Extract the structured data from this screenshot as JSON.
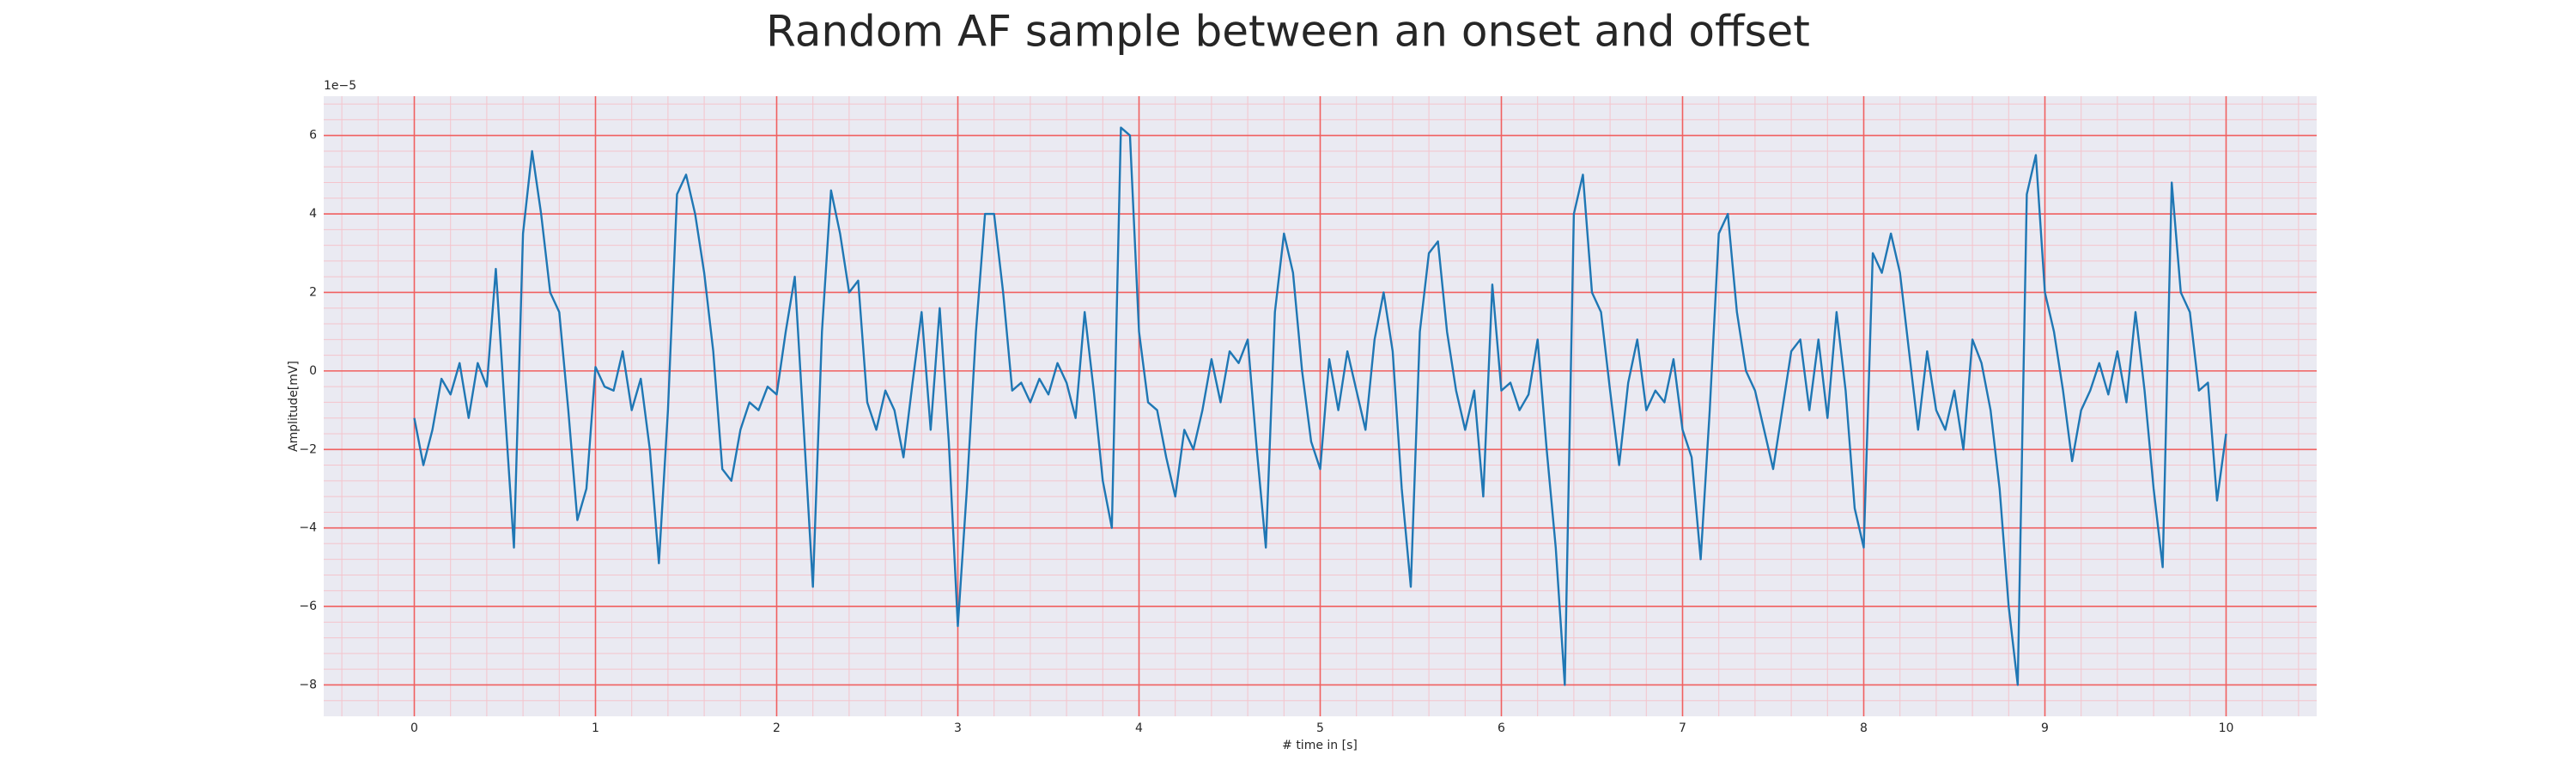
{
  "chart_data": {
    "type": "line",
    "title": "Random AF sample between an onset and offset",
    "xlabel": "# time in [s]",
    "ylabel": "Amplitude[mV]",
    "y_offset_label": "1e−5",
    "color": "#1f77b4",
    "background": "#eaeaf2",
    "grid": true,
    "grid_color": "#f06060",
    "minor_grid": true,
    "minor_grid_color": "#f4c4cc",
    "xlim": [
      -0.5,
      10.5
    ],
    "ylim": [
      -8.8,
      7.0
    ],
    "xticks": [
      0,
      1,
      2,
      3,
      4,
      5,
      6,
      7,
      8,
      9,
      10
    ],
    "yticks": [
      {
        "value": -8,
        "label": "−8"
      },
      {
        "value": -6,
        "label": "−6"
      },
      {
        "value": -4,
        "label": "−4"
      },
      {
        "value": -2,
        "label": "−2"
      },
      0,
      2,
      4,
      6
    ],
    "xminorticks": [
      -0.4,
      -0.2,
      0,
      0.2,
      0.4,
      0.6,
      0.8,
      1,
      1.2,
      1.4,
      1.6,
      1.8,
      2,
      2.2,
      2.4,
      2.6,
      2.8,
      3,
      3.2,
      3.4,
      3.6,
      3.8,
      4,
      4.2,
      4.4,
      4.6,
      4.8,
      5,
      5.2,
      5.4,
      5.6,
      5.8,
      6,
      6.2,
      6.4,
      6.6,
      6.8,
      7,
      7.2,
      7.4,
      7.6,
      7.8,
      8,
      8.2,
      8.4,
      8.6,
      8.8,
      9,
      9.2,
      9.4,
      9.6,
      9.8,
      10,
      10.2,
      10.4
    ],
    "yminorticks": [
      -8.4,
      -8,
      -7.6,
      -7.2,
      -6.8,
      -6.4,
      -6,
      -5.6,
      -5.2,
      -4.8,
      -4.4,
      -4,
      -3.6,
      -3.2,
      -2.8,
      -2.4,
      -2,
      -1.6,
      -1.2,
      -0.8,
      -0.4,
      0,
      0.4,
      0.8,
      1.2,
      1.6,
      2,
      2.4,
      2.8,
      3.2,
      3.6,
      4,
      4.4,
      4.8,
      5.2,
      5.6,
      6,
      6.4,
      6.8
    ],
    "x": [
      0,
      0.05,
      0.1,
      0.15,
      0.2,
      0.25,
      0.3,
      0.35,
      0.4,
      0.45,
      0.5,
      0.55,
      0.6,
      0.65,
      0.7,
      0.75,
      0.8,
      0.85,
      0.9,
      0.95,
      1,
      1.05,
      1.1,
      1.15,
      1.2,
      1.25,
      1.3,
      1.35,
      1.4,
      1.45,
      1.5,
      1.55,
      1.6,
      1.65,
      1.7,
      1.75,
      1.8,
      1.85,
      1.9,
      1.95,
      2,
      2.05,
      2.1,
      2.15,
      2.2,
      2.25,
      2.3,
      2.35,
      2.4,
      2.45,
      2.5,
      2.55,
      2.6,
      2.65,
      2.7,
      2.75,
      2.8,
      2.85,
      2.9,
      2.95,
      3,
      3.05,
      3.1,
      3.15,
      3.2,
      3.25,
      3.3,
      3.35,
      3.4,
      3.45,
      3.5,
      3.55,
      3.6,
      3.65,
      3.7,
      3.75,
      3.8,
      3.85,
      3.9,
      3.95,
      4,
      4.05,
      4.1,
      4.15,
      4.2,
      4.25,
      4.3,
      4.35,
      4.4,
      4.45,
      4.5,
      4.55,
      4.6,
      4.65,
      4.7,
      4.75,
      4.8,
      4.85,
      4.9,
      4.95,
      5,
      5.05,
      5.1,
      5.15,
      5.2,
      5.25,
      5.3,
      5.35,
      5.4,
      5.45,
      5.5,
      5.55,
      5.6,
      5.65,
      5.7,
      5.75,
      5.8,
      5.85,
      5.9,
      5.95,
      6,
      6.05,
      6.1,
      6.15,
      6.2,
      6.25,
      6.3,
      6.35,
      6.4,
      6.45,
      6.5,
      6.55,
      6.6,
      6.65,
      6.7,
      6.75,
      6.8,
      6.85,
      6.9,
      6.95,
      7,
      7.05,
      7.1,
      7.15,
      7.2,
      7.25,
      7.3,
      7.35,
      7.4,
      7.45,
      7.5,
      7.55,
      7.6,
      7.65,
      7.7,
      7.75,
      7.8,
      7.85,
      7.9,
      7.95,
      8,
      8.05,
      8.1,
      8.15,
      8.2,
      8.25,
      8.3,
      8.35,
      8.4,
      8.45,
      8.5,
      8.55,
      8.6,
      8.65,
      8.7,
      8.75,
      8.8,
      8.85,
      8.9,
      8.95,
      9,
      9.05,
      9.1,
      9.15,
      9.2,
      9.25,
      9.3,
      9.35,
      9.4,
      9.45,
      9.5,
      9.55,
      9.6,
      9.65,
      9.7,
      9.75,
      9.8,
      9.85,
      9.9,
      9.95,
      10
    ],
    "values": [
      -1.2,
      -2.4,
      -1.5,
      -0.2,
      -0.6,
      0.2,
      -1.2,
      0.2,
      -0.4,
      2.6,
      -1.0,
      -4.5,
      3.5,
      5.6,
      4.0,
      2.0,
      1.5,
      -1.0,
      -3.8,
      -3.0,
      0.1,
      -0.4,
      -0.5,
      0.5,
      -1.0,
      -0.2,
      -2.0,
      -4.9,
      -1.0,
      4.5,
      5.0,
      4.0,
      2.5,
      0.5,
      -2.5,
      -2.8,
      -1.5,
      -0.8,
      -1.0,
      -0.4,
      -0.6,
      1.0,
      2.4,
      -1.5,
      -5.5,
      1.0,
      4.6,
      3.5,
      2.0,
      2.3,
      -0.8,
      -1.5,
      -0.5,
      -1.0,
      -2.2,
      -0.3,
      1.5,
      -1.5,
      1.6,
      -1.8,
      -6.5,
      -3.0,
      1.0,
      4.0,
      4.0,
      2.0,
      -0.5,
      -0.3,
      -0.8,
      -0.2,
      -0.6,
      0.2,
      -0.3,
      -1.2,
      1.5,
      -0.5,
      -2.8,
      -4.0,
      6.2,
      6.0,
      1.0,
      -0.8,
      -1.0,
      -2.2,
      -3.2,
      -1.5,
      -2.0,
      -1.0,
      0.3,
      -0.8,
      0.5,
      0.2,
      0.8,
      -2.0,
      -4.5,
      1.5,
      3.5,
      2.5,
      0.0,
      -1.8,
      -2.5,
      0.3,
      -1.0,
      0.5,
      -0.5,
      -1.5,
      0.8,
      2.0,
      0.5,
      -3.0,
      -5.5,
      1.0,
      3.0,
      3.3,
      1.0,
      -0.5,
      -1.5,
      -0.5,
      -3.2,
      2.2,
      -0.5,
      -0.3,
      -1.0,
      -0.6,
      0.8,
      -2.0,
      -4.5,
      -8.0,
      4.0,
      5.0,
      2.0,
      1.5,
      -0.5,
      -2.4,
      -0.3,
      0.8,
      -1.0,
      -0.5,
      -0.8,
      0.3,
      -1.5,
      -2.2,
      -4.8,
      -1.0,
      3.5,
      4.0,
      1.5,
      0.0,
      -0.5,
      -1.5,
      -2.5,
      -1.0,
      0.5,
      0.8,
      -1.0,
      0.8,
      -1.2,
      1.5,
      -0.5,
      -3.5,
      -4.5,
      3.0,
      2.5,
      3.5,
      2.5,
      0.5,
      -1.5,
      0.5,
      -1.0,
      -1.5,
      -0.5,
      -2.0,
      0.8,
      0.2,
      -1.0,
      -3.0,
      -6.0,
      -8.0,
      4.5,
      5.5,
      2.0,
      1.0,
      -0.5,
      -2.3,
      -1.0,
      -0.5,
      0.2,
      -0.6,
      0.5,
      -0.8,
      1.5,
      -0.5,
      -3.0,
      -5.0,
      4.8,
      2.0,
      1.5,
      -0.5,
      -0.3,
      -3.3,
      -1.6
    ]
  }
}
